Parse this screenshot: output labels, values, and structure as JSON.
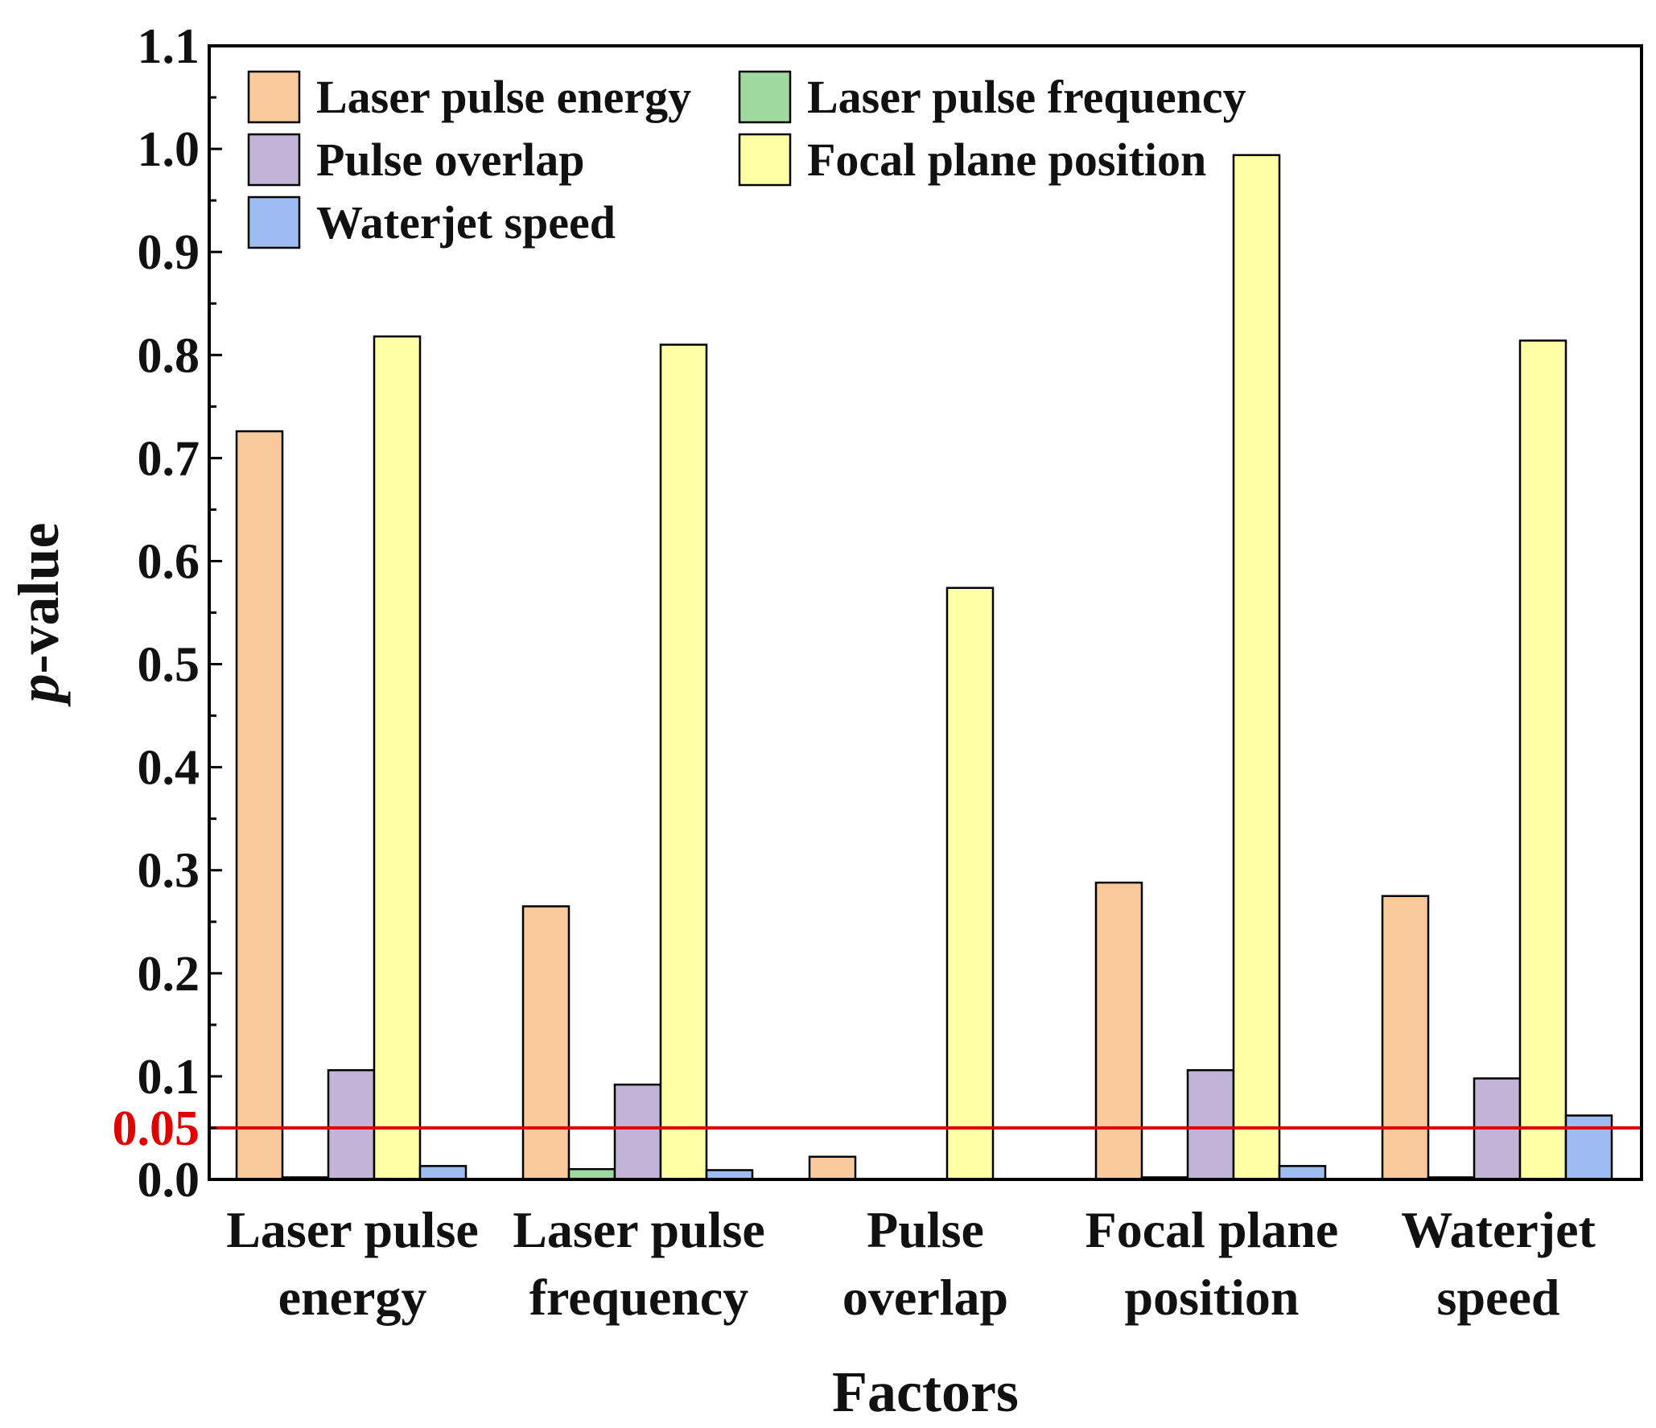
{
  "chart_data": {
    "type": "bar",
    "title": "",
    "xlabel": "Factors",
    "ylabel_italic": "p",
    "ylabel_rest": "-value",
    "ylim": [
      0,
      1.1
    ],
    "yticks": [
      "0.0",
      "0.1",
      "0.2",
      "0.3",
      "0.4",
      "0.5",
      "0.6",
      "0.7",
      "0.8",
      "0.9",
      "1.0",
      "1.1"
    ],
    "ytick_values": [
      0,
      0.1,
      0.2,
      0.3,
      0.4,
      0.5,
      0.6,
      0.7,
      0.8,
      0.9,
      1.0,
      1.1
    ],
    "reference_line": {
      "value": 0.05,
      "label": "0.05",
      "color": "#e00000"
    },
    "categories": [
      [
        "Laser pulse",
        "energy"
      ],
      [
        "Laser pulse",
        "frequency"
      ],
      [
        "Pulse",
        "overlap"
      ],
      [
        "Focal plane",
        "position"
      ],
      [
        "Waterjet",
        "speed"
      ]
    ],
    "series": [
      {
        "name": "Laser pulse energy",
        "color": "#f9c89b",
        "values": [
          0.726,
          0.265,
          0.022,
          0.288,
          0.275
        ]
      },
      {
        "name": "Laser pulse frequency",
        "color": "#9fd9a0",
        "values": [
          0.002,
          0.01,
          0.0,
          0.002,
          0.002
        ]
      },
      {
        "name": "Pulse overlap",
        "color": "#c2b3d9",
        "values": [
          0.106,
          0.092,
          0.0,
          0.106,
          0.098
        ]
      },
      {
        "name": "Focal plane position",
        "color": "#ffffa6",
        "values": [
          0.818,
          0.81,
          0.574,
          0.994,
          0.814
        ]
      },
      {
        "name": "Waterjet speed",
        "color": "#9dbcef",
        "values": [
          0.013,
          0.009,
          0.0,
          0.013,
          0.062
        ]
      }
    ],
    "legend_position": "top-left",
    "grid": false
  }
}
